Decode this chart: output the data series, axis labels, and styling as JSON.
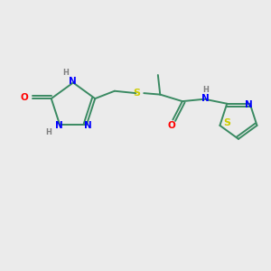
{
  "background_color": "#ebebeb",
  "atom_colors": {
    "C": "#3a8a62",
    "N": "#0000ff",
    "O": "#ff0000",
    "S": "#cccc00",
    "H": "#808080"
  },
  "bond_color": "#3a8a62",
  "figsize": [
    3.0,
    3.0
  ],
  "dpi": 100,
  "xlim": [
    0,
    10
  ],
  "ylim": [
    0,
    10
  ]
}
